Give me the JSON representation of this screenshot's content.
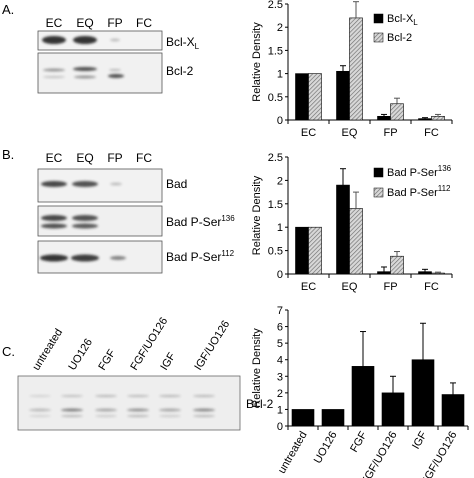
{
  "panels": {
    "a": {
      "label": "A.",
      "lanes": [
        "EC",
        "EQ",
        "FP",
        "FC"
      ],
      "blot_labels": [
        {
          "main": "Bcl-X",
          "sub": "L"
        },
        {
          "main": "Bcl-2"
        }
      ]
    },
    "b": {
      "label": "B.",
      "lanes": [
        "EC",
        "EQ",
        "FP",
        "FC"
      ],
      "blot_labels": [
        {
          "main": "Bad"
        },
        {
          "main": "Bad P-Ser",
          "sup": "136"
        },
        {
          "main": "Bad P-Ser",
          "sup": "112"
        }
      ]
    },
    "c": {
      "label": "C.",
      "lanes": [
        "untreated",
        "UO126",
        "FGF",
        "FGF/UO126",
        "IGF",
        "IGF/UO126"
      ],
      "blot_labels": [
        {
          "main": "Bcl-2"
        }
      ]
    }
  },
  "colors": {
    "black": "#000000",
    "hatched": "#9a9a9a",
    "lightgray": "#a6a6a6",
    "blot_band": "#2a2a2a"
  },
  "chart_data": [
    {
      "type": "bar",
      "panel": "A",
      "categories": [
        "EC",
        "EQ",
        "FP",
        "FC"
      ],
      "series": [
        {
          "name": "Bcl-XL",
          "legend_main": "Bcl-X",
          "legend_sub": "L",
          "style": "black",
          "values": [
            1.0,
            1.05,
            0.08,
            0.03
          ],
          "errors": [
            0,
            0.12,
            0.04,
            0.02
          ]
        },
        {
          "name": "Bcl-2",
          "legend_main": "Bcl-2",
          "style": "hatched",
          "values": [
            1.0,
            2.2,
            0.35,
            0.08
          ],
          "errors": [
            0,
            0.35,
            0.12,
            0.04
          ]
        }
      ],
      "ylabel": "Relative Density",
      "ylim": [
        0,
        2.5
      ],
      "yticks": [
        "0",
        "0.5",
        "1",
        "1.5",
        "2",
        "2.5"
      ],
      "legend": "top-right"
    },
    {
      "type": "bar",
      "panel": "B",
      "categories": [
        "EC",
        "EQ",
        "FP",
        "FC"
      ],
      "series": [
        {
          "name": "Bad P-Ser136",
          "legend_main": "Bad P-Ser",
          "legend_sup": "136",
          "style": "black",
          "values": [
            1.0,
            1.9,
            0.05,
            0.05
          ],
          "errors": [
            0,
            0.35,
            0.1,
            0.05
          ]
        },
        {
          "name": "Bad P-Ser112",
          "legend_main": "Bad P-Ser",
          "legend_sup": "112",
          "style": "hatched",
          "values": [
            1.0,
            1.4,
            0.38,
            0.02
          ],
          "errors": [
            0,
            0.35,
            0.1,
            0.02
          ]
        }
      ],
      "ylabel": "Relative Density",
      "ylim": [
        0,
        2.5
      ],
      "yticks": [
        "0",
        "0.5",
        "1",
        "1.5",
        "2",
        "2.5"
      ],
      "legend": "top-right"
    },
    {
      "type": "bar",
      "panel": "C",
      "categories": [
        "untreated",
        "UO126",
        "FGF",
        "FGF/UO126",
        "IGF",
        "IGF/UO126"
      ],
      "series": [
        {
          "style": "black",
          "values": [
            1.0,
            1.0,
            3.6,
            2.0,
            4.0,
            1.9
          ],
          "errors": [
            0,
            0,
            2.1,
            1.0,
            2.2,
            0.7
          ]
        }
      ],
      "ylabel": "Relative Density",
      "ylim": [
        0,
        7
      ],
      "yticks": [
        "0",
        "1",
        "2",
        "3",
        "4",
        "5",
        "6",
        "7"
      ]
    }
  ]
}
